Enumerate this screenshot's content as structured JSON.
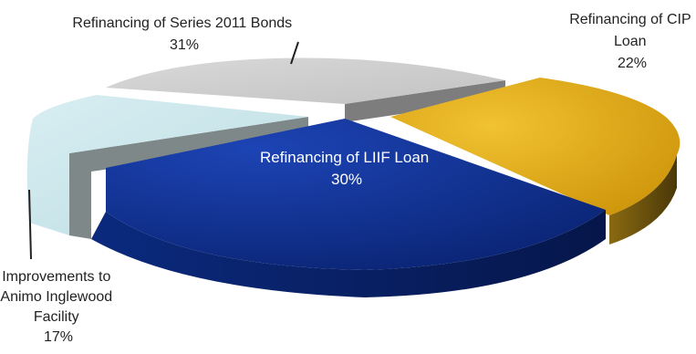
{
  "chart_data": {
    "type": "pie",
    "slices": [
      {
        "label_lines": [
          "Refinancing of CIP",
          "Loan"
        ],
        "percent_label": "22%",
        "value": 22,
        "color": "#d39b06",
        "side_color": "#6e5410"
      },
      {
        "label_lines": [
          "Refinancing of LIIF Loan"
        ],
        "percent_label": "30%",
        "value": 30,
        "color": "#0b2d8c",
        "side_color": "#081d5a"
      },
      {
        "label_lines": [
          "Improvements to",
          "Animo Inglewood",
          "Facility"
        ],
        "percent_label": "17%",
        "value": 17,
        "color": "#cde7ec",
        "side_color": "#7e8888"
      },
      {
        "label_lines": [
          "Refinancing of Series 2011 Bonds"
        ],
        "percent_label": "31%",
        "value": 31,
        "color": "#cecece",
        "side_color": "#7d7d7d"
      }
    ],
    "legend": "none",
    "style": "3d-exploded"
  }
}
